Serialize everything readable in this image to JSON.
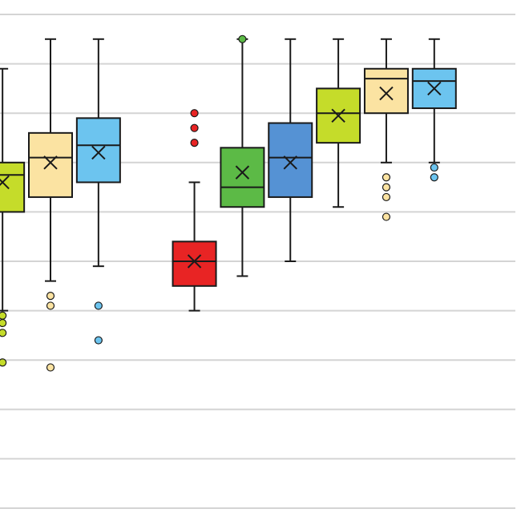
{
  "chart_data": {
    "type": "box",
    "title": "",
    "xlabel": "",
    "ylabel": "",
    "ylim": [
      0,
      10
    ],
    "grid": true,
    "legend": "none",
    "colors": {
      "yellowgreen": "#c5dc2a",
      "lightyellow": "#fbe3a2",
      "lightblue": "#6cc4ef",
      "red": "#e82424",
      "green": "#5cba46",
      "blue": "#5592d4",
      "gridline": "#d4d4d4",
      "stroke": "#1a1a1a"
    },
    "boxes": [
      {
        "color": "yellowgreen",
        "x": 0.05,
        "min": 4.0,
        "q1": 6.0,
        "median": 6.75,
        "q3": 7.0,
        "max": 8.9,
        "mean": 6.6,
        "outliers": [
          3.9,
          3.75,
          3.55,
          2.95
        ]
      },
      {
        "color": "lightyellow",
        "x": 1.0,
        "min": 4.6,
        "q1": 6.3,
        "median": 7.1,
        "q3": 7.6,
        "max": 9.5,
        "mean": 7.0,
        "outliers": [
          4.3,
          4.1,
          2.85
        ]
      },
      {
        "color": "lightblue",
        "x": 1.95,
        "min": 4.9,
        "q1": 6.6,
        "median": 7.35,
        "q3": 7.9,
        "max": 9.5,
        "mean": 7.2,
        "outliers": [
          4.1,
          3.4
        ]
      },
      {
        "color": "red",
        "x": 3.85,
        "min": 4.0,
        "q1": 4.5,
        "median": 5.0,
        "q3": 5.4,
        "max": 6.6,
        "mean": 5.0,
        "outliers": [
          7.7,
          7.4,
          8.0
        ]
      },
      {
        "color": "green",
        "x": 4.8,
        "min": 4.7,
        "q1": 6.1,
        "median": 6.5,
        "q3": 7.3,
        "max": 9.5,
        "mean": 6.8,
        "outliers": [
          9.5
        ]
      },
      {
        "color": "blue",
        "x": 5.75,
        "min": 5.0,
        "q1": 6.3,
        "median": 7.1,
        "q3": 7.8,
        "max": 9.5,
        "mean": 7.0,
        "outliers": []
      },
      {
        "color": "yellowgreen",
        "x": 6.7,
        "min": 6.1,
        "q1": 7.4,
        "median": 8.0,
        "q3": 8.5,
        "max": 9.5,
        "mean": 7.95,
        "outliers": []
      },
      {
        "color": "lightyellow",
        "x": 7.65,
        "min": 7.0,
        "q1": 8.0,
        "median": 8.7,
        "q3": 8.9,
        "max": 9.5,
        "mean": 8.4,
        "outliers": [
          6.7,
          6.5,
          6.3,
          5.9
        ]
      },
      {
        "color": "lightblue",
        "x": 8.6,
        "min": 7.0,
        "q1": 8.1,
        "median": 8.65,
        "q3": 8.9,
        "max": 9.5,
        "mean": 8.5,
        "outliers": [
          6.9,
          6.7
        ]
      }
    ]
  }
}
